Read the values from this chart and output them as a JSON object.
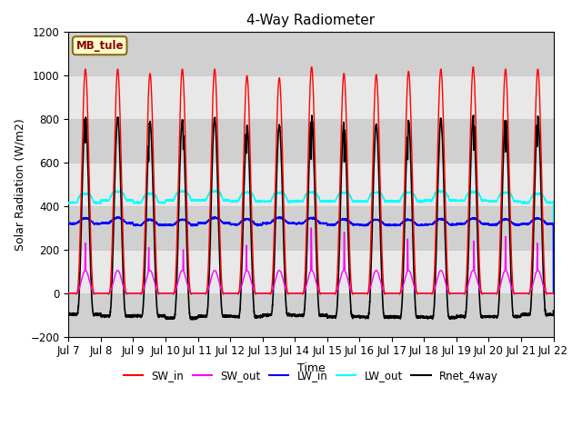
{
  "title": "4-Way Radiometer",
  "ylabel": "Solar Radiation (W/m2)",
  "xlabel": "Time",
  "station_label": "MB_tule",
  "station_label_facecolor": "#FFFFCC",
  "station_label_edgecolor": "#8B6914",
  "station_label_textcolor": "#8B0000",
  "ylim": [
    -200,
    1200
  ],
  "yticks": [
    -200,
    0,
    200,
    400,
    600,
    800,
    1000,
    1200
  ],
  "start_day": 7,
  "end_day": 22,
  "n_days": 15,
  "colors": {
    "SW_in": "#FF0000",
    "SW_out": "#FF00FF",
    "LW_in": "#0000FF",
    "LW_out": "#00FFFF",
    "Rnet_4way": "#000000"
  },
  "linewidths": {
    "SW_in": 1.0,
    "SW_out": 1.0,
    "LW_in": 1.0,
    "LW_out": 1.0,
    "Rnet_4way": 1.2
  },
  "legend_labels": [
    "SW_in",
    "SW_out",
    "LW_in",
    "LW_out",
    "Rnet_4way"
  ],
  "grid_color": "#CCCCCC",
  "plot_bg_color": "#E8E8E8",
  "alt_band_color": "#D0D0D0",
  "title_fontsize": 11,
  "label_fontsize": 9,
  "tick_fontsize": 8.5
}
